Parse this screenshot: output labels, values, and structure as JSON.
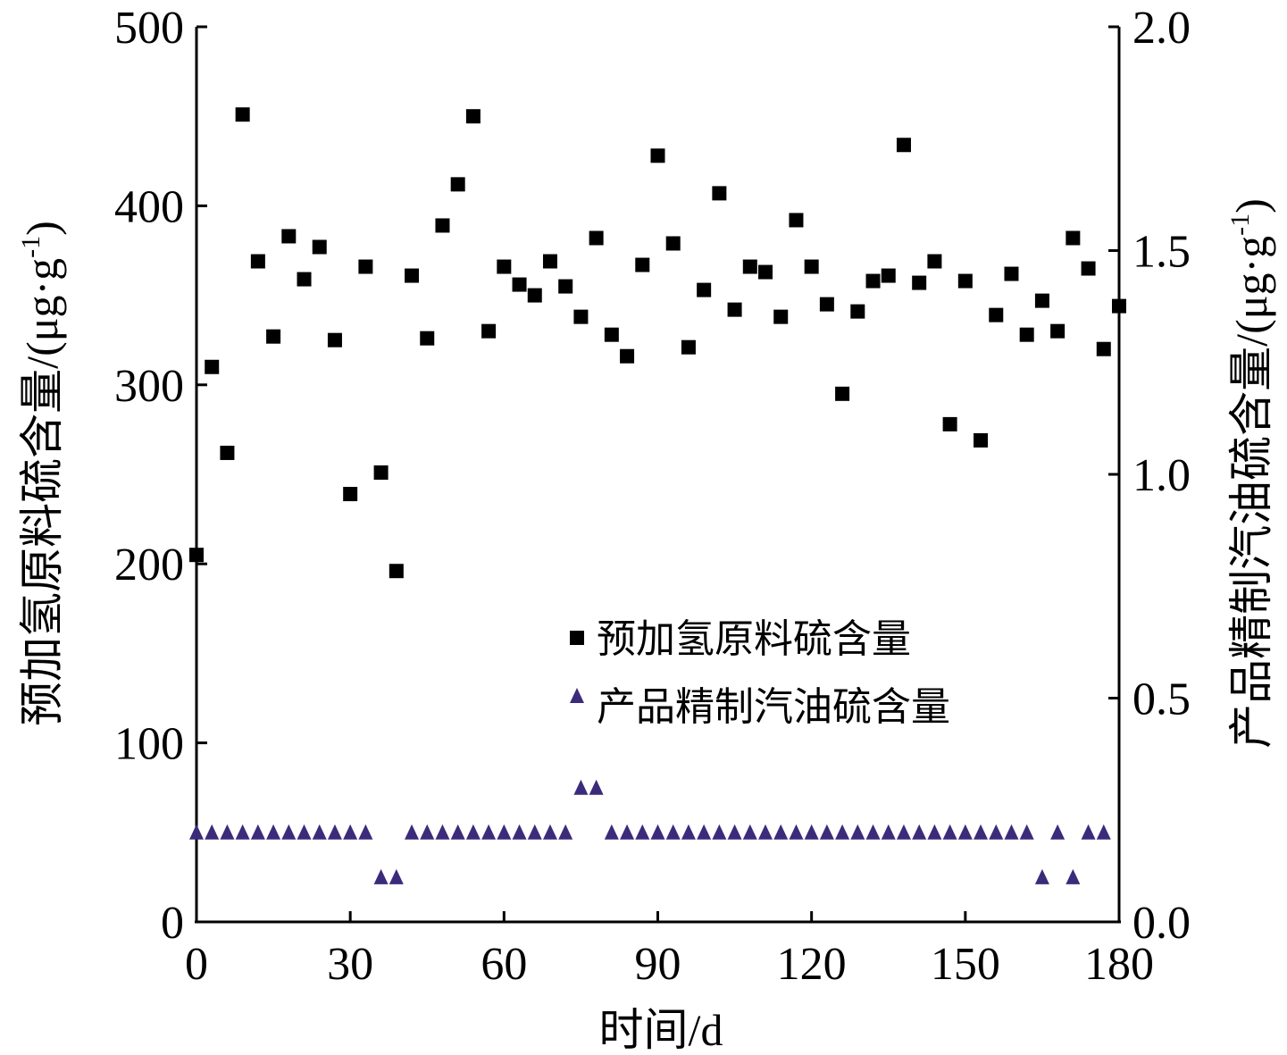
{
  "chart_data": {
    "type": "scatter",
    "xlabel": "时间/d",
    "ylabel_left": "预加氢原料硫含量/(μg·g",
    "ylabel_right": "产品精制汽油硫含量/(μg·g",
    "ylabel_sup": "-1",
    "ylabel_close": ")",
    "xlim": [
      0,
      180
    ],
    "ylim_left": [
      0,
      500
    ],
    "ylim_right": [
      0,
      2.0
    ],
    "grid": false,
    "legend_position": "right-middle",
    "x_ticks": [
      {
        "value": 0,
        "label": "0"
      },
      {
        "value": 30,
        "label": "30"
      },
      {
        "value": 60,
        "label": "60"
      },
      {
        "value": 90,
        "label": "90"
      },
      {
        "value": 120,
        "label": "120"
      },
      {
        "value": 150,
        "label": "150"
      },
      {
        "value": 180,
        "label": "180"
      }
    ],
    "y_ticks_left": [
      {
        "value": 0,
        "label": "0"
      },
      {
        "value": 100,
        "label": "100"
      },
      {
        "value": 200,
        "label": "200"
      },
      {
        "value": 300,
        "label": "300"
      },
      {
        "value": 400,
        "label": "400"
      },
      {
        "value": 500,
        "label": "500"
      }
    ],
    "y_ticks_right": [
      {
        "value": 0.0,
        "label": "0.0"
      },
      {
        "value": 0.5,
        "label": "0.5"
      },
      {
        "value": 1.0,
        "label": "1.0"
      },
      {
        "value": 1.5,
        "label": "1.5"
      },
      {
        "value": 2.0,
        "label": "2.0"
      }
    ],
    "series": [
      {
        "name": "预加氢原料硫含量",
        "axis": "left",
        "marker": "square",
        "color": "#000000",
        "points": [
          [
            0,
            205
          ],
          [
            3,
            310
          ],
          [
            6,
            262
          ],
          [
            9,
            451
          ],
          [
            12,
            369
          ],
          [
            15,
            327
          ],
          [
            18,
            383
          ],
          [
            21,
            359
          ],
          [
            24,
            377
          ],
          [
            27,
            325
          ],
          [
            30,
            239
          ],
          [
            33,
            366
          ],
          [
            36,
            251
          ],
          [
            39,
            196
          ],
          [
            42,
            361
          ],
          [
            45,
            326
          ],
          [
            48,
            389
          ],
          [
            51,
            412
          ],
          [
            54,
            450
          ],
          [
            57,
            330
          ],
          [
            60,
            366
          ],
          [
            63,
            356
          ],
          [
            66,
            350
          ],
          [
            69,
            369
          ],
          [
            72,
            355
          ],
          [
            75,
            338
          ],
          [
            78,
            382
          ],
          [
            81,
            328
          ],
          [
            84,
            316
          ],
          [
            87,
            367
          ],
          [
            90,
            428
          ],
          [
            93,
            379
          ],
          [
            96,
            321
          ],
          [
            99,
            353
          ],
          [
            102,
            407
          ],
          [
            105,
            342
          ],
          [
            108,
            366
          ],
          [
            111,
            363
          ],
          [
            114,
            338
          ],
          [
            117,
            392
          ],
          [
            120,
            366
          ],
          [
            123,
            345
          ],
          [
            126,
            295
          ],
          [
            129,
            341
          ],
          [
            132,
            358
          ],
          [
            135,
            361
          ],
          [
            138,
            434
          ],
          [
            141,
            357
          ],
          [
            144,
            369
          ],
          [
            147,
            278
          ],
          [
            150,
            358
          ],
          [
            153,
            269
          ],
          [
            156,
            339
          ],
          [
            159,
            362
          ],
          [
            162,
            328
          ],
          [
            165,
            347
          ],
          [
            168,
            330
          ],
          [
            171,
            382
          ],
          [
            174,
            365
          ],
          [
            177,
            320
          ],
          [
            180,
            344
          ]
        ]
      },
      {
        "name": "产品精制汽油硫含量",
        "axis": "right",
        "marker": "triangle",
        "color": "#3b2b7a",
        "points": [
          [
            0,
            0.2
          ],
          [
            3,
            0.2
          ],
          [
            6,
            0.2
          ],
          [
            9,
            0.2
          ],
          [
            12,
            0.2
          ],
          [
            15,
            0.2
          ],
          [
            18,
            0.2
          ],
          [
            21,
            0.2
          ],
          [
            24,
            0.2
          ],
          [
            27,
            0.2
          ],
          [
            30,
            0.2
          ],
          [
            33,
            0.2
          ],
          [
            36,
            0.1
          ],
          [
            39,
            0.1
          ],
          [
            42,
            0.2
          ],
          [
            45,
            0.2
          ],
          [
            48,
            0.2
          ],
          [
            51,
            0.2
          ],
          [
            54,
            0.2
          ],
          [
            57,
            0.2
          ],
          [
            60,
            0.2
          ],
          [
            63,
            0.2
          ],
          [
            66,
            0.2
          ],
          [
            69,
            0.2
          ],
          [
            72,
            0.2
          ],
          [
            75,
            0.3
          ],
          [
            78,
            0.3
          ],
          [
            81,
            0.2
          ],
          [
            84,
            0.2
          ],
          [
            87,
            0.2
          ],
          [
            90,
            0.2
          ],
          [
            93,
            0.2
          ],
          [
            96,
            0.2
          ],
          [
            99,
            0.2
          ],
          [
            102,
            0.2
          ],
          [
            105,
            0.2
          ],
          [
            108,
            0.2
          ],
          [
            111,
            0.2
          ],
          [
            114,
            0.2
          ],
          [
            117,
            0.2
          ],
          [
            120,
            0.2
          ],
          [
            123,
            0.2
          ],
          [
            126,
            0.2
          ],
          [
            129,
            0.2
          ],
          [
            132,
            0.2
          ],
          [
            135,
            0.2
          ],
          [
            138,
            0.2
          ],
          [
            141,
            0.2
          ],
          [
            144,
            0.2
          ],
          [
            147,
            0.2
          ],
          [
            150,
            0.2
          ],
          [
            153,
            0.2
          ],
          [
            156,
            0.2
          ],
          [
            159,
            0.2
          ],
          [
            162,
            0.2
          ],
          [
            165,
            0.1
          ],
          [
            168,
            0.2
          ],
          [
            171,
            0.1
          ],
          [
            174,
            0.2
          ],
          [
            177,
            0.2
          ]
        ]
      }
    ]
  }
}
